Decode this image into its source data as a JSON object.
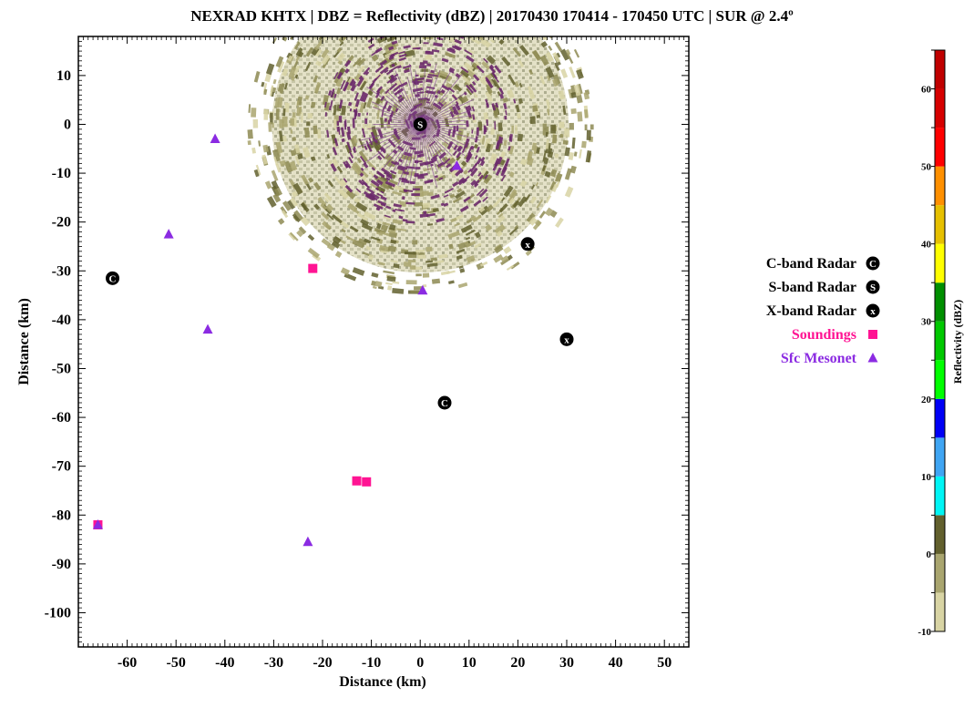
{
  "chart_data": {
    "type": "scatter",
    "title": "NEXRAD KHTX | DBZ = Reflectivity (dBZ) | 20170430 170414 - 170450 UTC | SUR @ 2.4º",
    "xlabel": "Distance (km)",
    "ylabel": "Distance (km)",
    "xlim": [
      -70,
      55
    ],
    "ylim": [
      -107,
      18
    ],
    "xticks": [
      -60,
      -50,
      -40,
      -30,
      -20,
      -10,
      0,
      10,
      20,
      30,
      40,
      50
    ],
    "yticks": [
      10,
      0,
      -10,
      -20,
      -30,
      -40,
      -50,
      -60,
      -70,
      -80,
      -90,
      -100
    ],
    "radar_echo": {
      "center": [
        0,
        0
      ],
      "approx_radius_km": 33
    },
    "series": [
      {
        "name": "C-band Radar",
        "marker": "C",
        "color": "#000000",
        "points": [
          [
            -63,
            -31.5
          ],
          [
            5,
            -57
          ]
        ]
      },
      {
        "name": "S-band Radar",
        "marker": "S",
        "color": "#000000",
        "points": [
          [
            0,
            0
          ]
        ]
      },
      {
        "name": "X-band Radar",
        "marker": "x",
        "color": "#000000",
        "points": [
          [
            22,
            -24.5
          ],
          [
            30,
            -44
          ]
        ]
      },
      {
        "name": "Soundings",
        "marker": "square",
        "color": "#ff1493",
        "points": [
          [
            -22,
            -29.5
          ],
          [
            -13,
            -73
          ],
          [
            -11,
            -73.2
          ],
          [
            -66,
            -82
          ]
        ]
      },
      {
        "name": "Sfc Mesonet",
        "marker": "triangle",
        "color": "#8b2be2",
        "points": [
          [
            -42,
            -3
          ],
          [
            -51.5,
            -22.5
          ],
          [
            -43.5,
            -42
          ],
          [
            0.5,
            -34
          ],
          [
            7.5,
            -8.5
          ],
          [
            -23,
            -85.5
          ],
          [
            -66,
            -82
          ]
        ]
      }
    ],
    "colorbar": {
      "label": "Reflectivity (dBZ)",
      "min": -10,
      "max": 65,
      "tick_values": [
        60,
        50,
        40,
        30,
        20,
        10,
        0,
        -10
      ],
      "bins": [
        {
          "from": -10,
          "to": -5,
          "color": "#d8d4a4"
        },
        {
          "from": -5,
          "to": 0,
          "color": "#a9a56f"
        },
        {
          "from": 0,
          "to": 5,
          "color": "#62602e"
        },
        {
          "from": 5,
          "to": 10,
          "color": "#00f5f5"
        },
        {
          "from": 10,
          "to": 15,
          "color": "#3fa5f3"
        },
        {
          "from": 15,
          "to": 20,
          "color": "#0000f6"
        },
        {
          "from": 20,
          "to": 25,
          "color": "#00ff00"
        },
        {
          "from": 25,
          "to": 30,
          "color": "#00c800"
        },
        {
          "from": 30,
          "to": 35,
          "color": "#008f00"
        },
        {
          "from": 35,
          "to": 40,
          "color": "#ffff00"
        },
        {
          "from": 40,
          "to": 45,
          "color": "#e6c000"
        },
        {
          "from": 45,
          "to": 50,
          "color": "#ff9000"
        },
        {
          "from": 50,
          "to": 55,
          "color": "#ff0000"
        },
        {
          "from": 55,
          "to": 60,
          "color": "#d60000"
        },
        {
          "from": 60,
          "to": 65,
          "color": "#c00000"
        }
      ]
    }
  }
}
